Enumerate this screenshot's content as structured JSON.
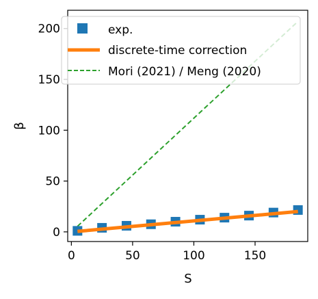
{
  "chart_data": {
    "type": "scatter",
    "xlabel": "S",
    "ylabel": "β",
    "xlim": [
      -3,
      193
    ],
    "ylim": [
      -9.5,
      218
    ],
    "xticks": [
      0,
      50,
      100,
      150
    ],
    "yticks": [
      0,
      50,
      100,
      150,
      200
    ],
    "legend_position": "top-left",
    "grid": false,
    "series": [
      {
        "name": "exp.",
        "kind": "markers",
        "marker": "square",
        "color": "#1f77b4",
        "x": [
          5,
          25,
          45,
          65,
          85,
          105,
          125,
          145,
          165,
          185
        ],
        "y": [
          1.0,
          4.0,
          6.0,
          7.5,
          10.0,
          12.0,
          14.0,
          16.0,
          19.0,
          21.5
        ]
      },
      {
        "name": "discrete-time correction",
        "kind": "line",
        "style": "solid",
        "color": "#ff7f0e",
        "x": [
          5,
          185
        ],
        "y": [
          0.5,
          20.0
        ]
      },
      {
        "name": "Mori (2021) / Meng (2020)",
        "kind": "line",
        "style": "dashed",
        "color": "#2ca02c",
        "x": [
          5,
          185
        ],
        "y": [
          5.5,
          207.0
        ]
      }
    ]
  }
}
